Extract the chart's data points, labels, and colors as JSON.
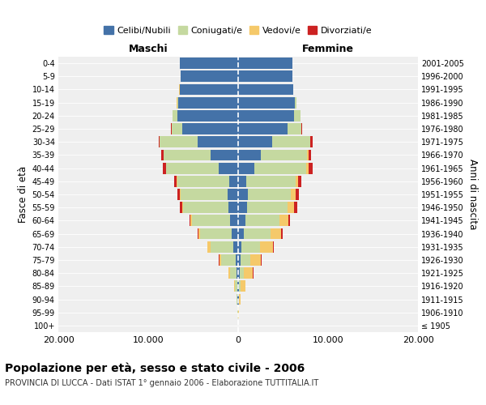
{
  "age_groups": [
    "100+",
    "95-99",
    "90-94",
    "85-89",
    "80-84",
    "75-79",
    "70-74",
    "65-69",
    "60-64",
    "55-59",
    "50-54",
    "45-49",
    "40-44",
    "35-39",
    "30-34",
    "25-29",
    "20-24",
    "15-19",
    "10-14",
    "5-9",
    "0-4"
  ],
  "birth_years": [
    "≤ 1905",
    "1906-1910",
    "1911-1915",
    "1916-1920",
    "1921-1925",
    "1926-1930",
    "1931-1935",
    "1936-1940",
    "1941-1945",
    "1946-1950",
    "1951-1955",
    "1956-1960",
    "1961-1965",
    "1966-1970",
    "1971-1975",
    "1976-1980",
    "1981-1985",
    "1986-1990",
    "1991-1995",
    "1996-2000",
    "2001-2005"
  ],
  "colors": {
    "celibi": "#4472a8",
    "coniugati": "#c5d9a0",
    "vedovi": "#f5c96a",
    "divorziati": "#cc2222"
  },
  "legend_labels": [
    "Celibi/Nubili",
    "Coniugati/e",
    "Vedovi/e",
    "Divorziati/e"
  ],
  "maschi": {
    "celibi": [
      20,
      40,
      60,
      100,
      200,
      300,
      500,
      700,
      900,
      1100,
      1200,
      1000,
      2200,
      3100,
      4500,
      6200,
      6800,
      6700,
      6500,
      6400,
      6500
    ],
    "coniugati": [
      5,
      20,
      80,
      300,
      700,
      1600,
      2600,
      3500,
      4200,
      5000,
      5200,
      5800,
      5800,
      5200,
      4200,
      1200,
      500,
      100,
      30,
      10,
      5
    ],
    "vedovi": [
      5,
      10,
      30,
      80,
      200,
      200,
      300,
      200,
      200,
      150,
      100,
      80,
      50,
      30,
      20,
      10,
      5,
      3,
      2,
      1,
      1
    ],
    "divorziati": [
      1,
      2,
      3,
      5,
      10,
      30,
      60,
      80,
      100,
      200,
      250,
      200,
      300,
      200,
      150,
      50,
      20,
      10,
      5,
      3,
      2
    ]
  },
  "femmine": {
    "nubili": [
      15,
      30,
      50,
      80,
      150,
      250,
      400,
      600,
      800,
      1000,
      1100,
      900,
      1800,
      2500,
      3800,
      5500,
      6200,
      6300,
      6100,
      6000,
      6000
    ],
    "coniugate": [
      3,
      15,
      60,
      200,
      500,
      1100,
      2000,
      3000,
      3800,
      4500,
      4800,
      5500,
      5800,
      5200,
      4200,
      1500,
      700,
      200,
      50,
      15,
      5
    ],
    "vedove": [
      20,
      60,
      200,
      500,
      1000,
      1200,
      1500,
      1200,
      1000,
      700,
      500,
      300,
      200,
      100,
      50,
      20,
      10,
      5,
      2,
      1,
      1
    ],
    "divorziate": [
      1,
      2,
      5,
      10,
      20,
      50,
      100,
      150,
      200,
      350,
      400,
      350,
      500,
      350,
      250,
      80,
      30,
      10,
      5,
      2,
      2
    ]
  },
  "xlim": 20000,
  "xticks": [
    -20000,
    -10000,
    0,
    10000,
    20000
  ],
  "xticklabels": [
    "20.000",
    "10.000",
    "0",
    "10.000",
    "20.000"
  ],
  "title": "Popolazione per età, sesso e stato civile - 2006",
  "subtitle": "PROVINCIA DI LUCCA - Dati ISTAT 1° gennaio 2006 - Elaborazione TUTTITALIA.IT",
  "ylabel_left": "Fasce di età",
  "ylabel_right": "Anni di nascita",
  "header_left": "Maschi",
  "header_right": "Femmine",
  "plot_bg": "#efefef"
}
